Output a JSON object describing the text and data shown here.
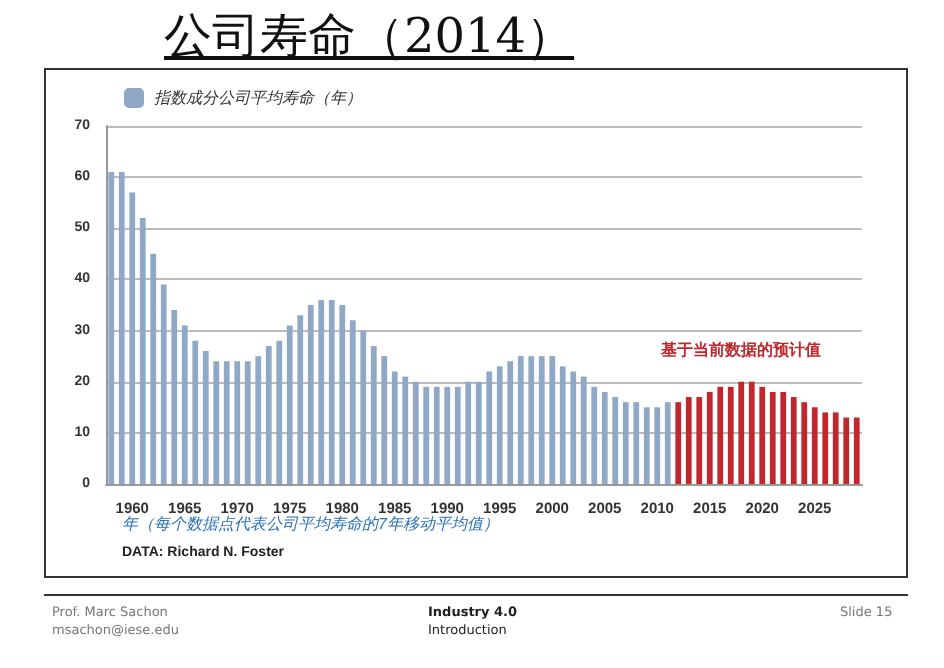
{
  "chart_data": {
    "type": "bar",
    "title": "公司寿命（2014）",
    "xlabel": "年（每个数据点代表公司平均寿命的7年移动平均值）",
    "categories": [
      null,
      null,
      "1960",
      null,
      null,
      null,
      null,
      "1965",
      null,
      null,
      null,
      null,
      "1970",
      null,
      null,
      null,
      null,
      "1975",
      null,
      null,
      null,
      null,
      "1980",
      null,
      null,
      null,
      null,
      "1985",
      null,
      null,
      null,
      null,
      "1990",
      null,
      null,
      null,
      null,
      "1995",
      null,
      null,
      null,
      null,
      "2000",
      null,
      null,
      null,
      null,
      "2005",
      null,
      null,
      null,
      null,
      "2010",
      null,
      null,
      null,
      null,
      "2015",
      null,
      null,
      null,
      null,
      "2020",
      null,
      null,
      null,
      null,
      "2025",
      null,
      null,
      null,
      null
    ],
    "series": [
      {
        "name": "指数成分公司平均寿命（年）",
        "color": "#8ea8c6",
        "values": [
          61,
          61,
          57,
          52,
          45,
          39,
          34,
          31,
          28,
          26,
          24,
          24,
          24,
          24,
          25,
          27,
          28,
          31,
          33,
          35,
          36,
          36,
          35,
          32,
          30,
          27,
          25,
          22,
          21,
          20,
          19,
          19,
          19,
          19,
          20,
          20,
          22,
          23,
          24,
          25,
          25,
          25,
          25,
          23,
          22,
          21,
          19,
          18,
          17,
          16,
          16,
          15,
          15,
          16,
          null,
          null,
          null,
          null,
          null,
          null,
          null,
          null,
          null,
          null,
          null,
          null,
          null,
          null,
          null,
          null,
          null,
          null
        ]
      },
      {
        "name": "基于当前数据的预计值",
        "color": "#c0282d",
        "values": [
          null,
          null,
          null,
          null,
          null,
          null,
          null,
          null,
          null,
          null,
          null,
          null,
          null,
          null,
          null,
          null,
          null,
          null,
          null,
          null,
          null,
          null,
          null,
          null,
          null,
          null,
          null,
          null,
          null,
          null,
          null,
          null,
          null,
          null,
          null,
          null,
          null,
          null,
          null,
          null,
          null,
          null,
          null,
          null,
          null,
          null,
          null,
          null,
          null,
          null,
          null,
          null,
          null,
          null,
          16,
          17,
          17,
          18,
          19,
          19,
          20,
          20,
          19,
          18,
          18,
          17,
          16,
          15,
          14,
          14,
          13,
          13
        ]
      }
    ],
    "ylim": [
      0,
      70
    ],
    "yticks": [
      0,
      10,
      20,
      30,
      40,
      50,
      60,
      70
    ],
    "grid": "y",
    "legend": "top left",
    "annotations": [
      "DATA: Richard N. Foster",
      "Prof. Marc Sachon",
      "msachon@iese.edu",
      "Industry 4.0",
      "Introduction",
      "Slide 15"
    ]
  }
}
